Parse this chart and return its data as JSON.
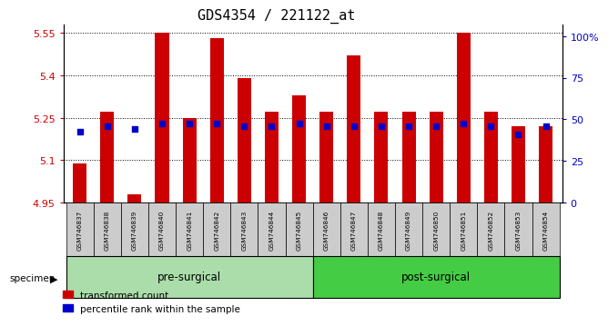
{
  "title": "GDS4354 / 221122_at",
  "samples": [
    "GSM746837",
    "GSM746838",
    "GSM746839",
    "GSM746840",
    "GSM746841",
    "GSM746842",
    "GSM746843",
    "GSM746844",
    "GSM746845",
    "GSM746846",
    "GSM746847",
    "GSM746848",
    "GSM746849",
    "GSM746850",
    "GSM746851",
    "GSM746852",
    "GSM746853",
    "GSM746854"
  ],
  "bar_values": [
    5.09,
    5.27,
    4.98,
    5.55,
    5.25,
    5.53,
    5.39,
    5.27,
    5.33,
    5.27,
    5.47,
    5.27,
    5.27,
    5.27,
    5.55,
    5.27,
    5.22,
    5.22
  ],
  "blue_dot_values": [
    5.2,
    5.22,
    5.21,
    5.23,
    5.23,
    5.23,
    5.22,
    5.22,
    5.23,
    5.22,
    5.22,
    5.22,
    5.22,
    5.22,
    5.23,
    5.22,
    5.19,
    5.22
  ],
  "bar_base": 4.95,
  "ylim_left": [
    4.95,
    5.58
  ],
  "yticks_left": [
    4.95,
    5.1,
    5.25,
    5.4,
    5.55
  ],
  "ytick_labels_left": [
    "4.95",
    "5.1",
    "5.25",
    "5.4",
    "5.55"
  ],
  "ylim_right": [
    0,
    107
  ],
  "yticks_right": [
    0,
    25,
    50,
    75,
    100
  ],
  "ytick_labels_right": [
    "0",
    "25",
    "50",
    "75",
    "100%"
  ],
  "bar_color": "#cc0000",
  "blue_color": "#0000cc",
  "pre_surgical_count": 9,
  "group_labels": [
    "pre-surgical",
    "post-surgical"
  ],
  "group_bg_light": "#aaddaa",
  "group_bg_dark": "#44cc44",
  "specimen_label": "specimen",
  "legend": [
    "transformed count",
    "percentile rank within the sample"
  ],
  "ylabel_left_color": "#cc0000",
  "ylabel_right_color": "#0000cc",
  "title_fontsize": 11
}
